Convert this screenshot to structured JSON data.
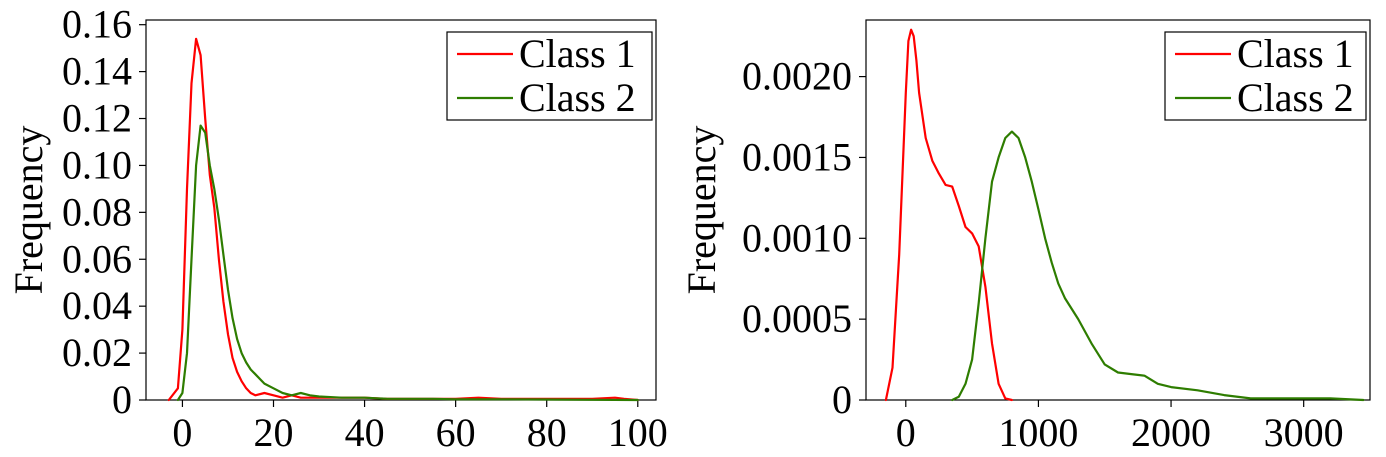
{
  "colors": {
    "class1": "#ff0000",
    "class2": "#2e7d00"
  },
  "chart_data": [
    {
      "type": "line",
      "title": "",
      "xlabel": "",
      "ylabel": "Frequency",
      "xlim": [
        -8,
        104
      ],
      "ylim": [
        0,
        0.162
      ],
      "xticks": [
        0,
        20,
        40,
        60,
        80,
        100
      ],
      "xtick_labels": [
        "0",
        "20",
        "40",
        "60",
        "80",
        "100"
      ],
      "yticks": [
        0,
        0.02,
        0.04,
        0.06,
        0.08,
        0.1,
        0.12,
        0.14,
        0.16
      ],
      "ytick_labels": [
        "0",
        "0.02",
        "0.04",
        "0.06",
        "0.08",
        "0.10",
        "0.12",
        "0.14",
        "0.16"
      ],
      "legend_position": "top-right",
      "grid": false,
      "series": [
        {
          "name": "Class 1",
          "color": "#ff0000",
          "x": [
            -3,
            -1,
            0,
            1,
            2,
            3,
            4,
            5,
            6,
            7,
            8,
            9,
            10,
            11,
            12,
            13,
            14,
            15,
            16,
            18,
            20,
            22,
            24,
            26,
            28,
            30,
            35,
            40,
            45,
            50,
            55,
            60,
            65,
            70,
            80,
            90,
            95,
            97,
            100
          ],
          "y": [
            0,
            0.005,
            0.03,
            0.09,
            0.135,
            0.154,
            0.147,
            0.12,
            0.096,
            0.082,
            0.06,
            0.042,
            0.028,
            0.018,
            0.012,
            0.008,
            0.005,
            0.003,
            0.002,
            0.003,
            0.002,
            0.001,
            0.002,
            0.001,
            0.001,
            0.001,
            0.001,
            0.001,
            0.0005,
            0.0005,
            0.0005,
            0.0005,
            0.001,
            0.0005,
            0.0005,
            0.0005,
            0.001,
            0.0005,
            0
          ]
        },
        {
          "name": "Class 2",
          "color": "#2e7d00",
          "x": [
            -1,
            0,
            1,
            2,
            3,
            4,
            5,
            6,
            7,
            8,
            9,
            10,
            11,
            12,
            13,
            14,
            15,
            16,
            17,
            18,
            20,
            22,
            24,
            26,
            28,
            30,
            35,
            40,
            45,
            50,
            55,
            60,
            70,
            80,
            90,
            100
          ],
          "y": [
            0,
            0.003,
            0.02,
            0.06,
            0.1,
            0.117,
            0.114,
            0.1,
            0.09,
            0.077,
            0.062,
            0.047,
            0.035,
            0.026,
            0.02,
            0.016,
            0.013,
            0.011,
            0.009,
            0.007,
            0.005,
            0.003,
            0.002,
            0.003,
            0.002,
            0.0015,
            0.001,
            0.001,
            0.0005,
            0.0005,
            0.0005,
            0.0003,
            0.0003,
            0.0002,
            0.0001,
            0
          ]
        }
      ]
    },
    {
      "type": "line",
      "title": "",
      "xlabel": "",
      "ylabel": "Frequency",
      "xlim": [
        -300,
        3500
      ],
      "ylim": [
        0,
        0.00235
      ],
      "xticks": [
        0,
        1000,
        2000,
        3000
      ],
      "xtick_labels": [
        "0",
        "1000",
        "2000",
        "3000"
      ],
      "yticks": [
        0,
        0.0005,
        0.001,
        0.0015,
        0.002
      ],
      "ytick_labels": [
        "0",
        "0.0005",
        "0.0010",
        "0.0015",
        "0.0020"
      ],
      "legend_position": "top-right",
      "grid": false,
      "series": [
        {
          "name": "Class 1",
          "color": "#ff0000",
          "x": [
            -150,
            -100,
            -50,
            0,
            20,
            40,
            60,
            80,
            100,
            150,
            200,
            250,
            300,
            350,
            400,
            450,
            500,
            550,
            600,
            650,
            700,
            750,
            800
          ],
          "y": [
            0,
            0.0002,
            0.0009,
            0.0019,
            0.00222,
            0.00229,
            0.00225,
            0.0021,
            0.0019,
            0.00162,
            0.00148,
            0.0014,
            0.00133,
            0.00132,
            0.0012,
            0.00107,
            0.00103,
            0.00095,
            0.0007,
            0.00035,
            0.0001,
            1e-05,
            0
          ]
        },
        {
          "name": "Class 2",
          "color": "#2e7d00",
          "x": [
            350,
            400,
            450,
            500,
            550,
            600,
            650,
            700,
            750,
            800,
            850,
            900,
            950,
            1000,
            1050,
            1100,
            1150,
            1200,
            1300,
            1400,
            1500,
            1600,
            1700,
            1800,
            1900,
            2000,
            2200,
            2400,
            2600,
            2800,
            3000,
            3200,
            3450
          ],
          "y": [
            0,
            2e-05,
            0.0001,
            0.00025,
            0.0006,
            0.001,
            0.00135,
            0.0015,
            0.00162,
            0.00166,
            0.00162,
            0.0015,
            0.00135,
            0.00118,
            0.001,
            0.00085,
            0.00072,
            0.00063,
            0.0005,
            0.00035,
            0.00022,
            0.00017,
            0.00016,
            0.00015,
            0.0001,
            8e-05,
            6e-05,
            3e-05,
            1e-05,
            1e-05,
            1e-05,
            1e-05,
            0
          ]
        }
      ]
    }
  ]
}
